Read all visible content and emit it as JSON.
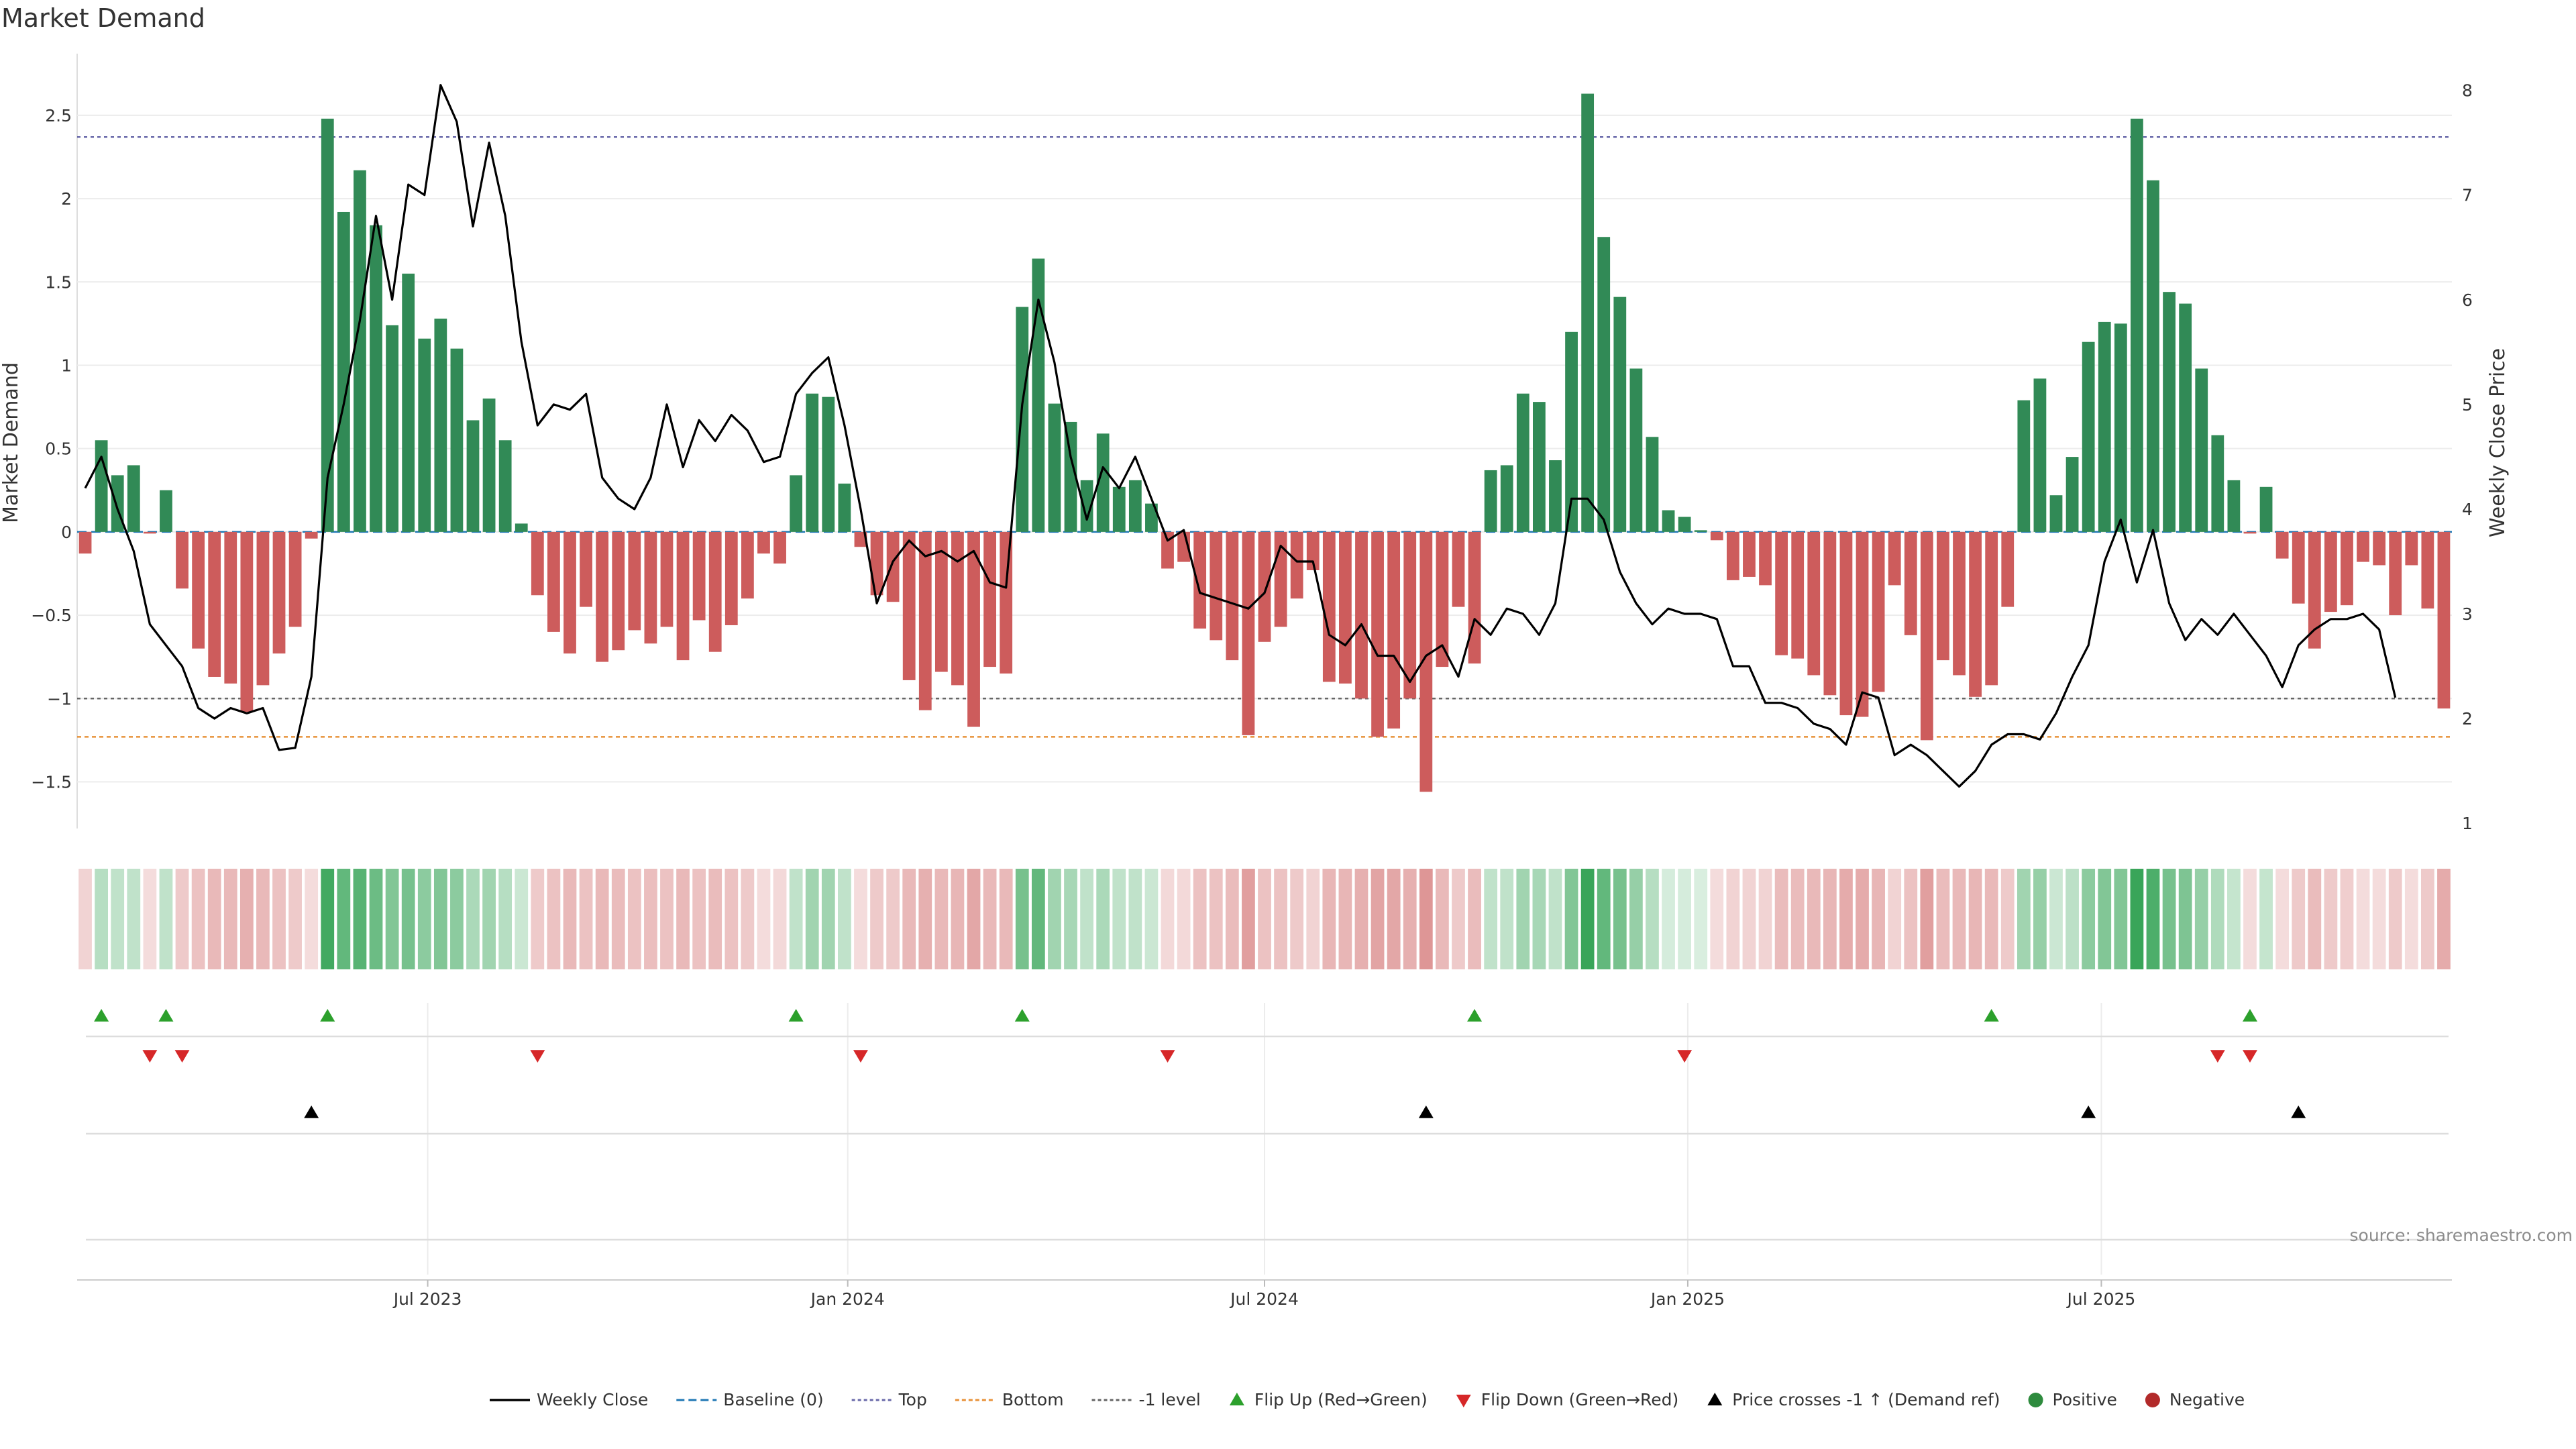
{
  "chart_data": {
    "type": "bar",
    "title": "Market Demand",
    "ylabel": "Market Demand",
    "y2label": "Weekly Close Price",
    "ylim": [
      -1.78,
      2.87
    ],
    "y2lim": [
      0.95,
      8.35
    ],
    "yticks": [
      -1.5,
      -1,
      -0.5,
      0,
      0.5,
      1,
      1.5,
      2,
      2.5
    ],
    "ytick_labels": [
      "−1.5",
      "−1",
      "−0.5",
      "0",
      "0.5",
      "1",
      "1.5",
      "2",
      "2.5"
    ],
    "y2ticks": [
      1,
      2,
      3,
      4,
      5,
      6,
      7,
      8
    ],
    "y2tick_labels": [
      "1",
      "2",
      "3",
      "4",
      "5",
      "6",
      "7",
      "8"
    ],
    "xtick_labels": [
      {
        "label": "Jul 2023",
        "index": 21.2
      },
      {
        "label": "Jan 2024",
        "index": 47.2
      },
      {
        "label": "Jul 2024",
        "index": 73.0
      },
      {
        "label": "Jan 2025",
        "index": 99.2
      },
      {
        "label": "Jul 2025",
        "index": 124.8
      }
    ],
    "top_level": 2.37,
    "bottom_level": -1.23,
    "minus_one_level": -1,
    "demand": [
      -0.13,
      0.55,
      0.34,
      0.4,
      -0.01,
      0.25,
      -0.34,
      -0.7,
      -0.87,
      -0.91,
      -1.08,
      -0.92,
      -0.73,
      -0.57,
      -0.04,
      2.48,
      1.92,
      2.17,
      1.84,
      1.24,
      1.55,
      1.16,
      1.28,
      1.1,
      0.67,
      0.8,
      0.55,
      0.05,
      -0.38,
      -0.6,
      -0.73,
      -0.45,
      -0.78,
      -0.71,
      -0.59,
      -0.67,
      -0.57,
      -0.77,
      -0.53,
      -0.72,
      -0.56,
      -0.4,
      -0.13,
      -0.19,
      0.34,
      0.83,
      0.81,
      0.29,
      -0.09,
      -0.38,
      -0.42,
      -0.89,
      -1.07,
      -0.84,
      -0.92,
      -1.17,
      -0.81,
      -0.85,
      1.35,
      1.64,
      0.77,
      0.66,
      0.31,
      0.59,
      0.27,
      0.31,
      0.17,
      -0.22,
      -0.18,
      -0.58,
      -0.65,
      -0.77,
      -1.22,
      -0.66,
      -0.57,
      -0.4,
      -0.23,
      -0.9,
      -0.91,
      -1.0,
      -1.23,
      -1.18,
      -1.0,
      -1.56,
      -0.81,
      -0.45,
      -0.79,
      0.37,
      0.4,
      0.83,
      0.78,
      0.43,
      1.2,
      2.63,
      1.77,
      1.41,
      0.98,
      0.57,
      0.13,
      0.09,
      0.01,
      -0.05,
      -0.29,
      -0.27,
      -0.32,
      -0.74,
      -0.76,
      -0.86,
      -0.98,
      -1.1,
      -1.11,
      -0.96,
      -0.32,
      -0.62,
      -1.25,
      -0.77,
      -0.86,
      -0.99,
      -0.92,
      -0.45,
      0.79,
      0.92,
      0.22,
      0.45,
      1.14,
      1.26,
      1.25,
      2.48,
      2.11,
      1.44,
      1.37,
      0.98,
      0.58,
      0.31,
      -0.01,
      0.27,
      -0.16,
      -0.43,
      -0.7,
      -0.48,
      -0.44,
      -0.18,
      -0.2,
      -0.5,
      -0.2,
      -0.46,
      -1.06
    ],
    "close": [
      4.2,
      4.5,
      4.0,
      3.6,
      2.9,
      2.7,
      2.5,
      2.1,
      2.0,
      2.1,
      2.05,
      2.1,
      1.7,
      1.72,
      2.4,
      4.3,
      5.0,
      5.8,
      6.8,
      6.0,
      7.1,
      7.0,
      8.05,
      7.7,
      6.7,
      7.5,
      6.8,
      5.6,
      4.8,
      5.0,
      4.95,
      5.1,
      4.3,
      4.1,
      4.0,
      4.3,
      5.0,
      4.4,
      4.85,
      4.65,
      4.9,
      4.75,
      4.45,
      4.5,
      5.1,
      5.3,
      5.45,
      4.8,
      4.0,
      3.1,
      3.5,
      3.7,
      3.55,
      3.6,
      3.5,
      3.6,
      3.3,
      3.25,
      5.0,
      6.0,
      5.4,
      4.5,
      3.9,
      4.4,
      4.2,
      4.5,
      4.1,
      3.7,
      3.8,
      3.2,
      3.15,
      3.1,
      3.05,
      3.2,
      3.65,
      3.5,
      3.5,
      2.8,
      2.7,
      2.9,
      2.6,
      2.6,
      2.35,
      2.6,
      2.7,
      2.4,
      2.95,
      2.8,
      3.05,
      3.0,
      2.8,
      3.1,
      4.1,
      4.1,
      3.9,
      3.4,
      3.1,
      2.9,
      3.05,
      3.0,
      3.0,
      2.95,
      2.5,
      2.5,
      2.15,
      2.15,
      2.1,
      1.95,
      1.9,
      1.75,
      2.25,
      2.2,
      1.65,
      1.75,
      1.65,
      1.5,
      1.35,
      1.5,
      1.75,
      1.85,
      1.85,
      1.8,
      2.05,
      2.4,
      2.7,
      3.5,
      3.9,
      3.3,
      3.8,
      3.1,
      2.75,
      2.95,
      2.8,
      3.0,
      2.8,
      2.6,
      2.3,
      2.7,
      2.85,
      2.95,
      2.95,
      3.0,
      2.85,
      2.2
    ],
    "shading_intensity": [
      0.25,
      0.35,
      0.3,
      0.3,
      0.2,
      0.3,
      0.3,
      0.35,
      0.4,
      0.4,
      0.45,
      0.4,
      0.35,
      0.3,
      0.2,
      0.9,
      0.75,
      0.8,
      0.7,
      0.6,
      0.65,
      0.55,
      0.6,
      0.55,
      0.4,
      0.45,
      0.35,
      0.25,
      0.3,
      0.35,
      0.4,
      0.35,
      0.4,
      0.38,
      0.35,
      0.37,
      0.35,
      0.4,
      0.35,
      0.38,
      0.35,
      0.3,
      0.2,
      0.22,
      0.3,
      0.45,
      0.45,
      0.3,
      0.2,
      0.3,
      0.3,
      0.4,
      0.45,
      0.4,
      0.42,
      0.5,
      0.4,
      0.4,
      0.65,
      0.75,
      0.45,
      0.42,
      0.3,
      0.4,
      0.3,
      0.3,
      0.25,
      0.22,
      0.22,
      0.35,
      0.35,
      0.38,
      0.55,
      0.35,
      0.35,
      0.3,
      0.25,
      0.42,
      0.42,
      0.45,
      0.52,
      0.5,
      0.45,
      0.6,
      0.4,
      0.3,
      0.38,
      0.3,
      0.3,
      0.45,
      0.42,
      0.3,
      0.6,
      0.95,
      0.75,
      0.65,
      0.5,
      0.35,
      0.2,
      0.2,
      0.18,
      0.2,
      0.25,
      0.25,
      0.25,
      0.38,
      0.38,
      0.4,
      0.42,
      0.48,
      0.48,
      0.42,
      0.25,
      0.35,
      0.55,
      0.38,
      0.4,
      0.42,
      0.4,
      0.3,
      0.45,
      0.5,
      0.25,
      0.32,
      0.55,
      0.6,
      0.6,
      0.95,
      0.85,
      0.65,
      0.62,
      0.5,
      0.38,
      0.28,
      0.2,
      0.28,
      0.2,
      0.3,
      0.38,
      0.3,
      0.28,
      0.2,
      0.2,
      0.3,
      0.2,
      0.3,
      0.48
    ],
    "flip_up_indices": [
      1,
      5,
      15,
      44,
      58,
      86,
      118,
      134
    ],
    "flip_down_indices": [
      4,
      6,
      28,
      48,
      67,
      99,
      132,
      134
    ],
    "price_cross_indices": [
      14,
      83,
      124,
      137
    ],
    "series": [
      {
        "name": "Weekly Close",
        "color": "#000000"
      },
      {
        "name": "Baseline (0)",
        "color": "#1f77b4"
      },
      {
        "name": "Top",
        "color": "#6a6aaa"
      },
      {
        "name": "Bottom",
        "color": "#e8923a"
      },
      {
        "name": "-1 level",
        "color": "#666666"
      },
      {
        "name": "Flip Up (Red→Green)",
        "color": "#2ca02c"
      },
      {
        "name": "Flip Down (Green→Red)",
        "color": "#d62728"
      },
      {
        "name": "Price crosses -1 ↑ (Demand ref)",
        "color": "#000000"
      },
      {
        "name": "Positive",
        "color": "#2e8b3e"
      },
      {
        "name": "Negative",
        "color": "#b22a2a"
      }
    ],
    "positive_bar_color": "#318a56",
    "negative_bar_color": "#cd5c5c",
    "source": "source: sharemaestro.com"
  }
}
